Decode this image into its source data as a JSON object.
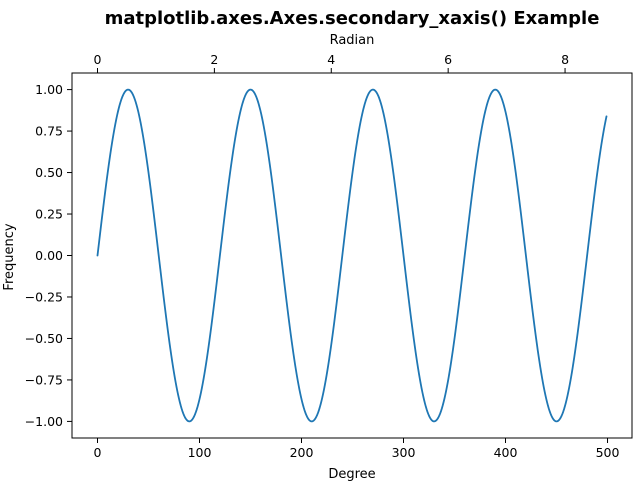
{
  "chart_data": {
    "type": "line",
    "title": "matplotlib.axes.Axes.secondary_xaxis() Example",
    "xlabel": "Degree",
    "ylabel": "Frequency",
    "secondary_xlabel": "Radian",
    "xlim": [
      -25,
      524
    ],
    "ylim": [
      -1.1,
      1.1
    ],
    "x_ticks": [
      0,
      100,
      200,
      300,
      400,
      500
    ],
    "y_ticks": [
      -1.0,
      -0.75,
      -0.5,
      -0.25,
      0.0,
      0.25,
      0.5,
      0.75,
      1.0
    ],
    "y_tick_labels": [
      "−1.00",
      "−0.75",
      "−0.50",
      "−0.25",
      "0.00",
      "0.25",
      "0.50",
      "0.75",
      "1.00"
    ],
    "secondary_x_ticks": [
      0,
      2,
      4,
      6,
      8
    ],
    "series": [
      {
        "color": "#1f77b4",
        "function": "sin(3x)",
        "x": [
          0,
          10,
          20,
          30,
          40,
          50,
          60,
          70,
          80,
          90,
          100,
          110,
          120,
          130,
          140,
          150,
          160,
          170,
          180,
          190,
          200,
          210,
          220,
          230,
          240,
          250,
          260,
          270,
          280,
          290,
          300,
          310,
          320,
          330,
          340,
          350,
          360,
          370,
          380,
          390,
          400,
          410,
          420,
          430,
          440,
          450,
          460,
          470,
          480,
          490,
          499
        ],
        "y": [
          0.0,
          0.5,
          0.866,
          1.0,
          0.866,
          0.5,
          0.0,
          -0.5,
          -0.866,
          -1.0,
          -0.866,
          -0.5,
          0.0,
          0.5,
          0.866,
          1.0,
          0.866,
          0.5,
          0.0,
          -0.5,
          -0.866,
          -1.0,
          -0.866,
          -0.5,
          0.0,
          0.5,
          0.866,
          1.0,
          0.866,
          0.5,
          0.0,
          -0.5,
          -0.866,
          -1.0,
          -0.866,
          -0.5,
          0.0,
          0.5,
          0.866,
          1.0,
          0.866,
          0.5,
          0.0,
          -0.5,
          -0.866,
          -1.0,
          -0.866,
          -0.5,
          0.0,
          0.5,
          0.809
        ]
      }
    ],
    "grid": false,
    "legend": "none"
  }
}
